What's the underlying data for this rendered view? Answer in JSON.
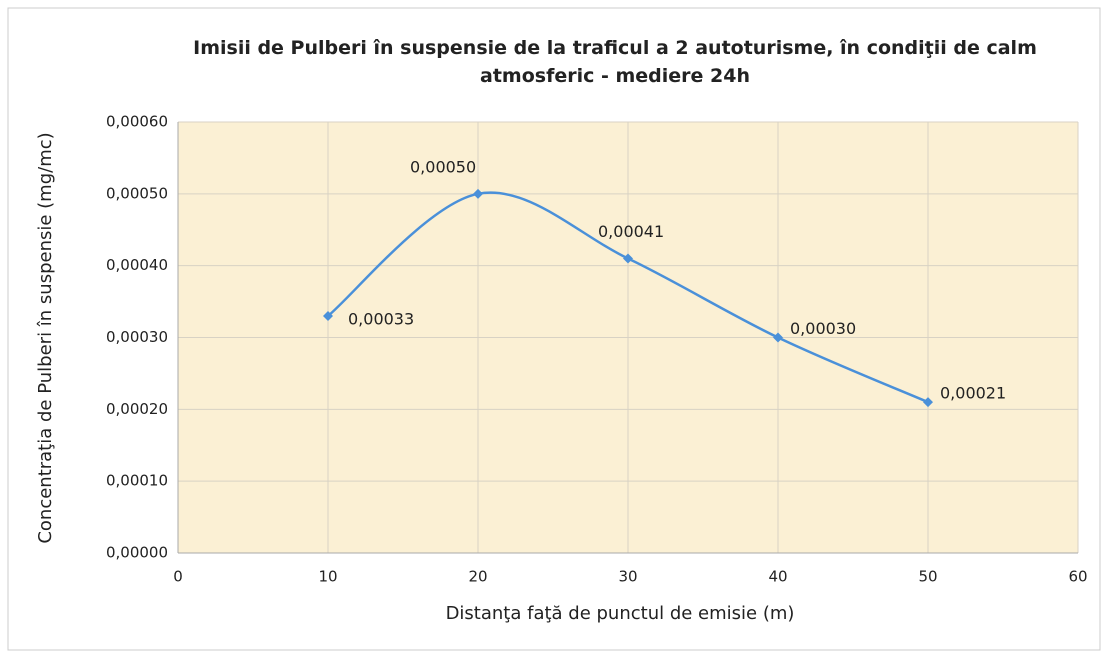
{
  "chart_data": {
    "type": "scatter",
    "title": "Imisii de Pulberi în suspensie de la traficul a 2 autoturisme, în condiţii de calm atmosferic - mediere 24h",
    "xlabel": "Distanţa faţă de punctul de emisie (m)",
    "ylabel": "Concentraţia de  Pulberi în suspensie (mg/mc)",
    "x": [
      10,
      20,
      30,
      40,
      50
    ],
    "series": [
      {
        "color": "#4a90d9",
        "values": [
          0.00033,
          0.0005,
          0.00041,
          0.0003,
          0.00021
        ],
        "value_labels": [
          "0,00033",
          "0,00050",
          "0,00041",
          "0,00030",
          "0,00021"
        ]
      }
    ],
    "xlim": [
      0,
      60
    ],
    "xticks": [
      0,
      10,
      20,
      30,
      40,
      50,
      60
    ],
    "ylim": [
      0,
      0.0006
    ],
    "yticks": [
      {
        "value": 0,
        "label": "0,00000"
      },
      {
        "value": 0.0001,
        "label": "0,00010"
      },
      {
        "value": 0.0002,
        "label": "0,00020"
      },
      {
        "value": 0.0003,
        "label": "0,00030"
      },
      {
        "value": 0.0004,
        "label": "0,00040"
      },
      {
        "value": 0.0005,
        "label": "0,00050"
      },
      {
        "value": 0.0006,
        "label": "0,00060"
      }
    ],
    "grid": true,
    "smooth": true
  }
}
